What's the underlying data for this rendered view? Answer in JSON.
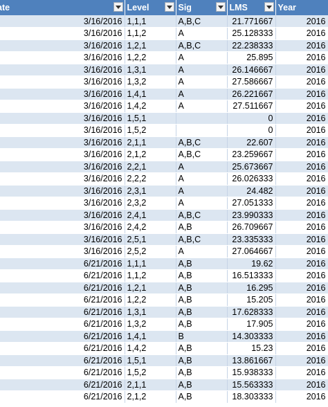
{
  "headers": {
    "date": "ate",
    "level": "Level",
    "sig": "Sig",
    "lms": "LMS",
    "year": "Year"
  },
  "rows": [
    {
      "date": "3/16/2016",
      "level": "1,1,1",
      "sig": "A,B,C",
      "lms": "21.771667",
      "year": "2016"
    },
    {
      "date": "3/16/2016",
      "level": "1,1,2",
      "sig": "A",
      "lms": "25.128333",
      "year": "2016"
    },
    {
      "date": "3/16/2016",
      "level": "1,2,1",
      "sig": "A,B,C",
      "lms": "22.238333",
      "year": "2016"
    },
    {
      "date": "3/16/2016",
      "level": "1,2,2",
      "sig": "A",
      "lms": "25.895",
      "year": "2016"
    },
    {
      "date": "3/16/2016",
      "level": "1,3,1",
      "sig": "A",
      "lms": "26.146667",
      "year": "2016"
    },
    {
      "date": "3/16/2016",
      "level": "1,3,2",
      "sig": "A",
      "lms": "27.586667",
      "year": "2016"
    },
    {
      "date": "3/16/2016",
      "level": "1,4,1",
      "sig": "A",
      "lms": "26.221667",
      "year": "2016"
    },
    {
      "date": "3/16/2016",
      "level": "1,4,2",
      "sig": "A",
      "lms": "27.511667",
      "year": "2016"
    },
    {
      "date": "3/16/2016",
      "level": "1,5,1",
      "sig": "",
      "lms": "0",
      "year": "2016"
    },
    {
      "date": "3/16/2016",
      "level": "1,5,2",
      "sig": "",
      "lms": "0",
      "year": "2016"
    },
    {
      "date": "3/16/2016",
      "level": "2,1,1",
      "sig": "A,B,C",
      "lms": "22.607",
      "year": "2016"
    },
    {
      "date": "3/16/2016",
      "level": "2,1,2",
      "sig": "A,B,C",
      "lms": "23.259667",
      "year": "2016"
    },
    {
      "date": "3/16/2016",
      "level": "2,2,1",
      "sig": "A",
      "lms": "25.673667",
      "year": "2016"
    },
    {
      "date": "3/16/2016",
      "level": "2,2,2",
      "sig": "A",
      "lms": "26.026333",
      "year": "2016"
    },
    {
      "date": "3/16/2016",
      "level": "2,3,1",
      "sig": "A",
      "lms": "24.482",
      "year": "2016"
    },
    {
      "date": "3/16/2016",
      "level": "2,3,2",
      "sig": "A",
      "lms": "27.051333",
      "year": "2016"
    },
    {
      "date": "3/16/2016",
      "level": "2,4,1",
      "sig": "A,B,C",
      "lms": "23.990333",
      "year": "2016"
    },
    {
      "date": "3/16/2016",
      "level": "2,4,2",
      "sig": "A,B",
      "lms": "26.709667",
      "year": "2016"
    },
    {
      "date": "3/16/2016",
      "level": "2,5,1",
      "sig": "A,B,C",
      "lms": "23.335333",
      "year": "2016"
    },
    {
      "date": "3/16/2016",
      "level": "2,5,2",
      "sig": "A",
      "lms": "27.064667",
      "year": "2016"
    },
    {
      "date": "6/21/2016",
      "level": "1,1,1",
      "sig": "A,B",
      "lms": "19.62",
      "year": "2016"
    },
    {
      "date": "6/21/2016",
      "level": "1,1,2",
      "sig": "A,B",
      "lms": "16.513333",
      "year": "2016"
    },
    {
      "date": "6/21/2016",
      "level": "1,2,1",
      "sig": "A,B",
      "lms": "16.295",
      "year": "2016"
    },
    {
      "date": "6/21/2016",
      "level": "1,2,2",
      "sig": "A,B",
      "lms": "15.205",
      "year": "2016"
    },
    {
      "date": "6/21/2016",
      "level": "1,3,1",
      "sig": "A,B",
      "lms": "17.628333",
      "year": "2016"
    },
    {
      "date": "6/21/2016",
      "level": "1,3,2",
      "sig": "A,B",
      "lms": "17.905",
      "year": "2016"
    },
    {
      "date": "6/21/2016",
      "level": "1,4,1",
      "sig": "B",
      "lms": "14.303333",
      "year": "2016"
    },
    {
      "date": "6/21/2016",
      "level": "1,4,2",
      "sig": "A,B",
      "lms": "15.23",
      "year": "2016"
    },
    {
      "date": "6/21/2016",
      "level": "1,5,1",
      "sig": "A,B",
      "lms": "13.861667",
      "year": "2016"
    },
    {
      "date": "6/21/2016",
      "level": "1,5,2",
      "sig": "A,B",
      "lms": "15.938333",
      "year": "2016"
    },
    {
      "date": "6/21/2016",
      "level": "2,1,1",
      "sig": "A,B",
      "lms": "15.563333",
      "year": "2016"
    },
    {
      "date": "6/21/2016",
      "level": "2,1,2",
      "sig": "A,B",
      "lms": "18.303333",
      "year": "2016"
    }
  ],
  "icons": {
    "filter": "dropdown-arrow-icon"
  },
  "colors": {
    "header_bg": "#4f81bd",
    "band": "#dce6f1",
    "header_text": "#ffffff"
  }
}
